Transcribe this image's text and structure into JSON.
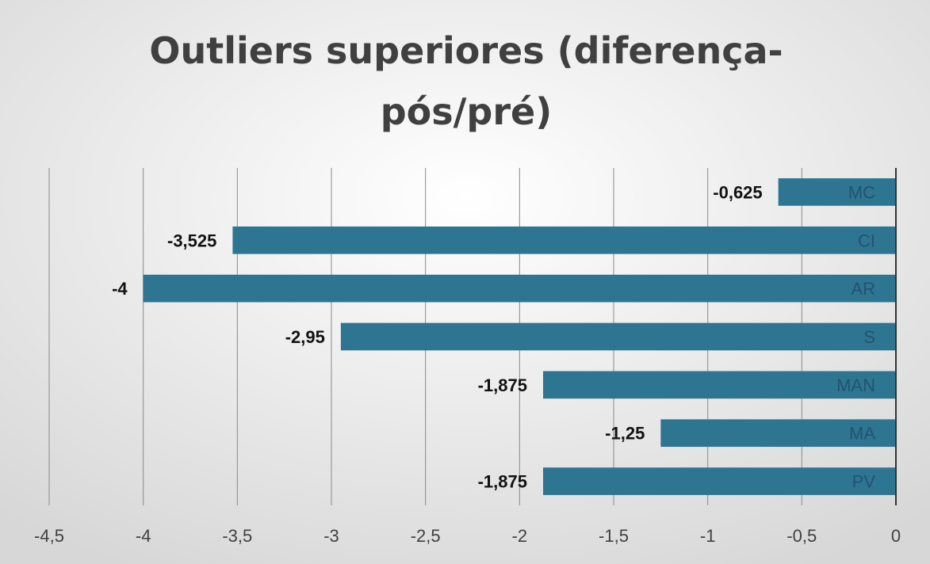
{
  "colors": {
    "bar": "#2e7592",
    "grid": "#8a8a8a",
    "axis": "#333333",
    "background_center": "#ffffff",
    "background_edge": "#d7d7d7"
  },
  "chart_data": {
    "type": "bar",
    "orientation": "horizontal",
    "title_lines": [
      "Outliers superiores (diferença-",
      "pós/pré)"
    ],
    "categories": [
      "MC",
      "CI",
      "AR",
      "S",
      "MAN",
      "MA",
      "PV"
    ],
    "values": [
      -0.625,
      -3.525,
      -4,
      -2.95,
      -1.875,
      -1.25,
      -1.875
    ],
    "data_labels": [
      "-0,625",
      "-3,525",
      "-4",
      "-2,95",
      "-1,875",
      "-1,25",
      "-1,875"
    ],
    "xlim": [
      -4.5,
      0
    ],
    "x_ticks": [
      -4.5,
      -4,
      -3.5,
      -3,
      -2.5,
      -2,
      -1.5,
      -1,
      -0.5,
      0
    ],
    "x_tick_labels": [
      "-4,5",
      "-4",
      "-3,5",
      "-3",
      "-2,5",
      "-2",
      "-1,5",
      "-1",
      "-0,5",
      "0"
    ],
    "grid": true,
    "legend": "none",
    "xlabel": "",
    "ylabel": ""
  }
}
